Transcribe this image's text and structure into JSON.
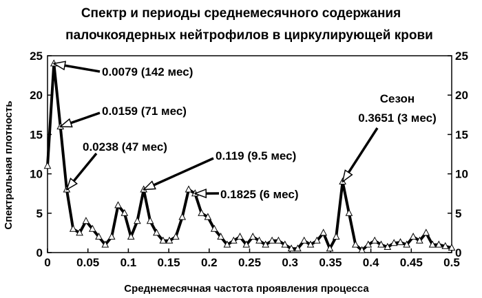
{
  "chart_data": {
    "type": "line",
    "title_lines": [
      "Спектр и периоды среднемесячного содержания",
      "палочкоядерных нейтрофилов в циркулирующей крови"
    ],
    "xlabel": "Среднемесячная частота проявления процесса",
    "ylabel": "Спектральная плотность",
    "xlim": [
      0,
      0.5
    ],
    "ylim": [
      0,
      25
    ],
    "x_ticks": [
      "0",
      "0.05",
      "0.1",
      "0.15",
      "0.2",
      "0.25",
      "0.3",
      "0.35",
      "0.4",
      "0.45",
      "0.5"
    ],
    "y_ticks": [
      "0",
      "5",
      "10",
      "15",
      "20",
      "25"
    ],
    "grid": false,
    "series": [
      {
        "x": [
          0,
          0.0079,
          0.0159,
          0.0238,
          0.0317,
          0.0397,
          0.0476,
          0.0556,
          0.0635,
          0.0714,
          0.0794,
          0.0873,
          0.0952,
          0.1032,
          0.1111,
          0.119,
          0.127,
          0.1349,
          0.1429,
          0.1508,
          0.1587,
          0.1667,
          0.1746,
          0.1825,
          0.1905,
          0.1984,
          0.2063,
          0.2143,
          0.2222,
          0.2302,
          0.2381,
          0.246,
          0.254,
          0.2619,
          0.2698,
          0.2778,
          0.2857,
          0.2937,
          0.3016,
          0.3095,
          0.3175,
          0.3254,
          0.3333,
          0.3413,
          0.3492,
          0.3571,
          0.3651,
          0.373,
          0.381,
          0.3889,
          0.3968,
          0.4048,
          0.4127,
          0.4206,
          0.4286,
          0.4365,
          0.4444,
          0.4524,
          0.4603,
          0.4683,
          0.4762,
          0.4841,
          0.4921,
          0.5
        ],
        "y": [
          11,
          24,
          16,
          8,
          3,
          2.5,
          4,
          3,
          2,
          1,
          2,
          6,
          5,
          2,
          4,
          8,
          4,
          2.5,
          1.5,
          1.5,
          2,
          4.5,
          8,
          7.5,
          5,
          4.5,
          3,
          2,
          1,
          1.5,
          2,
          1,
          2,
          1.5,
          1,
          1.5,
          1.5,
          1,
          0.5,
          0.5,
          1.5,
          1,
          1.5,
          2.5,
          0.5,
          2,
          9,
          5,
          1,
          0.3,
          1,
          1.5,
          1,
          0.7,
          1.2,
          1.3,
          1,
          2,
          1.5,
          2.5,
          1,
          1,
          0.8,
          0.6
        ]
      }
    ],
    "annotations": [
      {
        "text": "0.0079 (142 мес)",
        "x": 0.0079,
        "y": 24
      },
      {
        "text": "0.0159 (71 мес)",
        "x": 0.0159,
        "y": 16
      },
      {
        "text": "0.0238 (47 мес)",
        "x": 0.0238,
        "y": 8
      },
      {
        "text": "0.119 (9.5 мес)",
        "x": 0.119,
        "y": 8
      },
      {
        "text": "0.1825 (6 мес)",
        "x": 0.1825,
        "y": 7.5
      },
      {
        "text": "Сезон",
        "x": 0.3651,
        "y": 9
      },
      {
        "text": "0.3651 (3 мес)",
        "x": 0.3651,
        "y": 9
      }
    ]
  }
}
